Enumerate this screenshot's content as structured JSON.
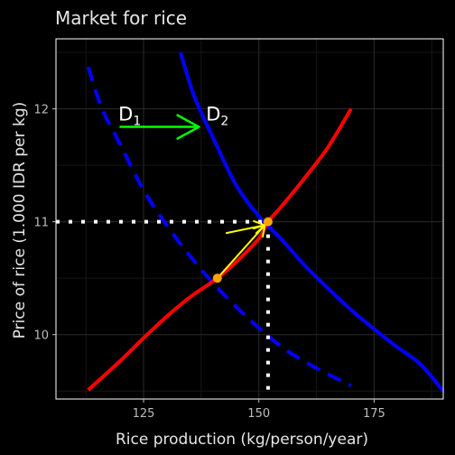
{
  "chart_data": {
    "type": "line",
    "title": "Market for rice",
    "xlabel": "Rice production (kg/person/year)",
    "ylabel": "Price of rice (1.000 IDR per kg)",
    "xlim": [
      106,
      190
    ],
    "ylim": [
      9.43,
      12.62
    ],
    "x_ticks": [
      125,
      150,
      175
    ],
    "y_ticks": [
      10,
      11,
      12
    ],
    "grid": true,
    "legend": "none",
    "colors": {
      "background": "#000000",
      "panel_border": "#ffffff",
      "grid_major": "#2b2b2b",
      "grid_minor": "#161616",
      "demand": "#0000ff",
      "supply": "#ff0000",
      "shift_arrow": "#00ff00",
      "move_arrow": "#ffff00",
      "point": "#ffa500",
      "guides": "#ffffff"
    },
    "series": [
      {
        "name": "D1",
        "style": "dashed",
        "points": [
          [
            113,
            12.37
          ],
          [
            116,
            12.0
          ],
          [
            120,
            11.68
          ],
          [
            125,
            11.28
          ],
          [
            130,
            10.97
          ],
          [
            135,
            10.7
          ],
          [
            140,
            10.46
          ],
          [
            145,
            10.25
          ],
          [
            150,
            10.06
          ],
          [
            155,
            9.89
          ],
          [
            160,
            9.76
          ],
          [
            165,
            9.65
          ],
          [
            170,
            9.55
          ]
        ]
      },
      {
        "name": "D2",
        "style": "solid",
        "points": [
          [
            133,
            12.5
          ],
          [
            136,
            12.11
          ],
          [
            140,
            11.75
          ],
          [
            145,
            11.33
          ],
          [
            150,
            11.05
          ],
          [
            155,
            10.84
          ],
          [
            160,
            10.61
          ],
          [
            165,
            10.41
          ],
          [
            170,
            10.22
          ],
          [
            175,
            10.05
          ],
          [
            180,
            9.89
          ],
          [
            185,
            9.74
          ],
          [
            190,
            9.5
          ]
        ]
      },
      {
        "style": "solid",
        "points": [
          [
            113,
            9.51
          ],
          [
            120,
            9.77
          ],
          [
            125,
            9.97
          ],
          [
            130,
            10.16
          ],
          [
            135,
            10.33
          ],
          [
            141,
            10.5
          ],
          [
            145,
            10.64
          ],
          [
            150,
            10.85
          ],
          [
            152,
            11.0
          ],
          [
            155,
            11.14
          ],
          [
            160,
            11.39
          ],
          [
            165,
            11.66
          ],
          [
            170,
            12.0
          ]
        ]
      }
    ],
    "points": [
      {
        "x": 141,
        "y": 10.5
      },
      {
        "x": 152,
        "y": 11.0
      }
    ],
    "guides": [
      {
        "from": [
          106,
          11.0
        ],
        "to": [
          152,
          11.0
        ]
      },
      {
        "from": [
          152,
          11.0
        ],
        "to": [
          152,
          9.43
        ]
      }
    ],
    "arrows": [
      {
        "color": "shift_arrow",
        "from": [
          120,
          11.84
        ],
        "to": [
          137,
          11.84
        ]
      },
      {
        "color": "move_arrow",
        "from": [
          141,
          10.5
        ],
        "to": [
          151.3,
          10.97
        ]
      },
      {
        "color": "move_arrow",
        "from": [
          143,
          10.9
        ],
        "to": [
          151.3,
          10.97
        ]
      }
    ],
    "annotations": [
      {
        "text": "D",
        "sub": "1",
        "x": 122,
        "y": 11.96
      },
      {
        "text": "D",
        "sub": "2",
        "x": 141,
        "y": 11.96
      }
    ]
  }
}
